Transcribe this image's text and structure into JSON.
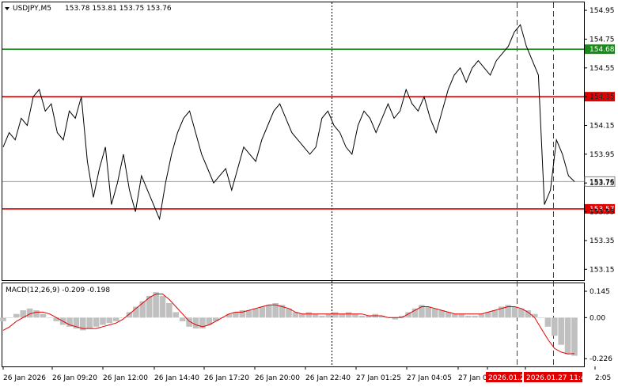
{
  "chart_data": [
    {
      "type": "line",
      "title": "USDJPY,M5",
      "ohlc_label": "153.78 153.81 153.75 153.76",
      "price_axis": {
        "ylim": [
          153.08,
          155.0
        ],
        "ticks": [
          "154.95",
          "154.75",
          "154.55",
          "154.35",
          "154.15",
          "153.95",
          "153.75",
          "153.55",
          "153.35",
          "153.15"
        ],
        "tick_values": [
          154.95,
          154.75,
          154.55,
          154.35,
          154.15,
          153.95,
          153.75,
          153.55,
          153.35,
          153.15
        ],
        "current_price": "153.76",
        "current_value": 153.76
      },
      "levels": [
        {
          "label": "154.68",
          "value": 154.68,
          "color": "#1a8a1a"
        },
        {
          "label": "154.35",
          "value": 154.35,
          "color": "#e00000"
        },
        {
          "label": "153.57",
          "value": 153.57,
          "color": "#e00000"
        }
      ],
      "x_ticks": [
        "26 Jan 2026",
        "26 Jan 09:20",
        "26 Jan 12:00",
        "26 Jan 14:40",
        "26 Jan 17:20",
        "26 Jan 20:00",
        "26 Jan 22:40",
        "27 Jan 01:25",
        "27 Jan 04:05",
        "27 Jan 0",
        "2026.01.2",
        "2026.01.27 11:45",
        "2:05"
      ],
      "price_series": [
        154.0,
        154.1,
        154.05,
        154.2,
        154.15,
        154.35,
        154.4,
        154.25,
        154.3,
        154.1,
        154.05,
        154.25,
        154.2,
        154.35,
        153.9,
        153.65,
        153.85,
        154.0,
        153.6,
        153.75,
        153.95,
        153.7,
        153.55,
        153.8,
        153.7,
        153.6,
        153.5,
        153.75,
        153.95,
        154.1,
        154.2,
        154.25,
        154.1,
        153.95,
        153.85,
        153.75,
        153.8,
        153.85,
        153.7,
        153.85,
        154.0,
        153.95,
        153.9,
        154.05,
        154.15,
        154.25,
        154.3,
        154.2,
        154.1,
        154.05,
        154.0,
        153.95,
        154.0,
        154.2,
        154.25,
        154.15,
        154.1,
        154.0,
        153.95,
        154.15,
        154.25,
        154.2,
        154.1,
        154.2,
        154.3,
        154.2,
        154.25,
        154.4,
        154.3,
        154.25,
        154.35,
        154.2,
        154.1,
        154.25,
        154.4,
        154.5,
        154.55,
        154.45,
        154.55,
        154.6,
        154.55,
        154.5,
        154.6,
        154.65,
        154.7,
        154.8,
        154.85,
        154.7,
        154.6,
        154.5,
        153.6,
        153.7,
        154.05,
        153.95,
        153.8,
        153.76
      ],
      "macd": {
        "label": "MACD(12,26,9) -0.209 -0.198",
        "ylim": [
          -0.26,
          0.18
        ],
        "ticks": [
          "0.145",
          "0.00",
          "-0.226"
        ],
        "tick_values": [
          0.145,
          0.0,
          -0.226
        ],
        "histogram": [
          -0.02,
          0.0,
          0.02,
          0.04,
          0.05,
          0.04,
          0.02,
          0.0,
          -0.02,
          -0.04,
          -0.05,
          -0.06,
          -0.07,
          -0.06,
          -0.05,
          -0.04,
          -0.03,
          -0.02,
          0.0,
          0.03,
          0.06,
          0.09,
          0.12,
          0.14,
          0.12,
          0.08,
          0.03,
          -0.02,
          -0.05,
          -0.06,
          -0.06,
          -0.04,
          -0.02,
          0.0,
          0.02,
          0.03,
          0.04,
          0.04,
          0.05,
          0.06,
          0.07,
          0.08,
          0.07,
          0.05,
          0.03,
          0.02,
          0.03,
          0.02,
          0.01,
          0.02,
          0.03,
          0.02,
          0.03,
          0.02,
          0.01,
          0.01,
          0.02,
          0.01,
          0.0,
          -0.01,
          0.01,
          0.03,
          0.05,
          0.07,
          0.06,
          0.05,
          0.04,
          0.03,
          0.02,
          0.02,
          0.01,
          0.01,
          0.02,
          0.03,
          0.04,
          0.06,
          0.07,
          0.06,
          0.05,
          0.04,
          0.02,
          0.0,
          -0.05,
          -0.1,
          -0.15,
          -0.2,
          -0.21
        ],
        "signal": [
          -0.07,
          -0.05,
          -0.02,
          0.0,
          0.02,
          0.03,
          0.03,
          0.02,
          0.0,
          -0.02,
          -0.04,
          -0.05,
          -0.06,
          -0.06,
          -0.06,
          -0.05,
          -0.04,
          -0.03,
          -0.01,
          0.02,
          0.05,
          0.08,
          0.11,
          0.13,
          0.13,
          0.1,
          0.06,
          0.02,
          -0.02,
          -0.04,
          -0.05,
          -0.04,
          -0.02,
          0.0,
          0.02,
          0.03,
          0.03,
          0.04,
          0.05,
          0.06,
          0.07,
          0.07,
          0.06,
          0.05,
          0.03,
          0.02,
          0.02,
          0.02,
          0.02,
          0.02,
          0.02,
          0.02,
          0.02,
          0.02,
          0.02,
          0.01,
          0.01,
          0.01,
          0.0,
          0.0,
          0.0,
          0.02,
          0.04,
          0.06,
          0.06,
          0.05,
          0.04,
          0.03,
          0.02,
          0.02,
          0.02,
          0.02,
          0.02,
          0.03,
          0.04,
          0.05,
          0.06,
          0.06,
          0.05,
          0.03,
          0.0,
          -0.06,
          -0.12,
          -0.17,
          -0.19,
          -0.2,
          -0.198
        ]
      },
      "grid": false,
      "legend": "none"
    }
  ],
  "colors": {
    "price_line": "#000000",
    "support_resistance": "#e00000",
    "level_green": "#1a8a1a",
    "macd_hist": "#c0c0c0",
    "macd_signal": "#e00000",
    "current_price": "#808080",
    "event_marker": "#e00000"
  }
}
